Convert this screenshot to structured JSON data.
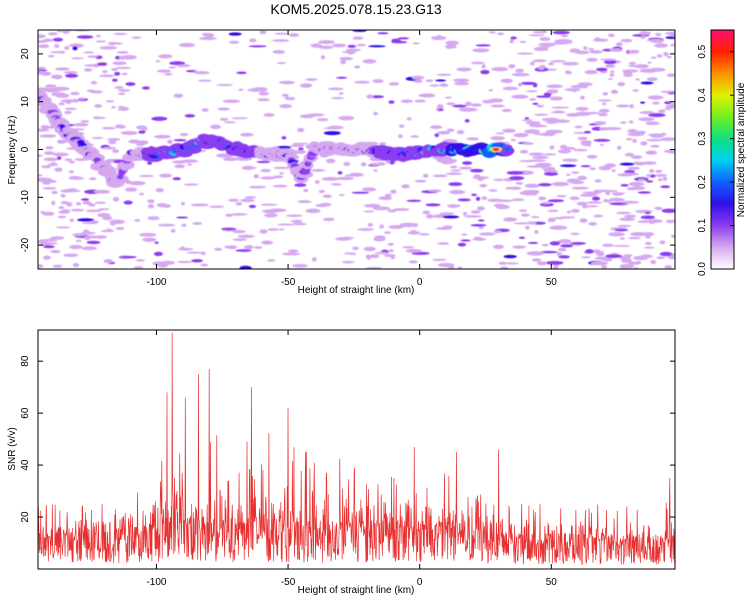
{
  "title": "KOM5.2025.078.15.23.G13",
  "chart_data": [
    {
      "type": "heatmap",
      "xlabel": "Height of straight line (km)",
      "ylabel": "Frequency (Hz)",
      "xlim": [
        -145,
        97
      ],
      "ylim": [
        -25,
        25
      ],
      "xticks": [
        -100,
        -50,
        0,
        50
      ],
      "xtick_labels": [
        "-100",
        "-50",
        "0",
        "50"
      ],
      "yticks": [
        -20,
        -10,
        0,
        10,
        20
      ],
      "ytick_labels": [
        "-20",
        "-10",
        "0",
        "10",
        "20"
      ],
      "colorbar": {
        "label": "Normalized spectral amplitude",
        "range": [
          0,
          0.55
        ],
        "ticks": [
          0,
          0.1,
          0.2,
          0.3,
          0.4,
          0.5
        ],
        "tick_labels": [
          "0.0",
          "0.1",
          "0.2",
          "0.3",
          "0.4",
          "0.5"
        ],
        "colors": [
          "#ffffff",
          "#d5a8f0",
          "#8c3cf0",
          "#3010e8",
          "#1060ff",
          "#00d0f0",
          "#10e080",
          "#70f020",
          "#e0f000",
          "#ff9000",
          "#ff2000",
          "#ff1070"
        ]
      },
      "ridge": [
        {
          "x": -144,
          "y": 11,
          "v": 0.1
        },
        {
          "x": -140,
          "y": 8,
          "v": 0.12
        },
        {
          "x": -135,
          "y": 4,
          "v": 0.15
        },
        {
          "x": -130,
          "y": 2,
          "v": 0.16
        },
        {
          "x": -125,
          "y": -1,
          "v": 0.15
        },
        {
          "x": -120,
          "y": -4,
          "v": 0.12
        },
        {
          "x": -115,
          "y": -7,
          "v": 0.1
        },
        {
          "x": -110,
          "y": -1,
          "v": 0.12
        },
        {
          "x": -100,
          "y": -1,
          "v": 0.2
        },
        {
          "x": -95,
          "y": -0.5,
          "v": 0.25
        },
        {
          "x": -88,
          "y": 0,
          "v": 0.28
        },
        {
          "x": -82,
          "y": 2,
          "v": 0.22
        },
        {
          "x": -75,
          "y": 1,
          "v": 0.2
        },
        {
          "x": -68,
          "y": 0,
          "v": 0.22
        },
        {
          "x": -60,
          "y": -1,
          "v": 0.16
        },
        {
          "x": -50,
          "y": -1,
          "v": 0.14
        },
        {
          "x": -45,
          "y": -6,
          "v": 0.1
        },
        {
          "x": -40,
          "y": 0,
          "v": 0.15
        },
        {
          "x": -30,
          "y": 0,
          "v": 0.16
        },
        {
          "x": -20,
          "y": 0,
          "v": 0.15
        },
        {
          "x": -10,
          "y": -1,
          "v": 0.2
        },
        {
          "x": -5,
          "y": -1,
          "v": 0.2
        },
        {
          "x": 5,
          "y": 0,
          "v": 0.25
        },
        {
          "x": 12,
          "y": 0,
          "v": 0.28
        },
        {
          "x": 18,
          "y": 0,
          "v": 0.3
        },
        {
          "x": 24,
          "y": 0,
          "v": 0.33
        },
        {
          "x": 29,
          "y": 0,
          "v": 0.53
        },
        {
          "x": 34,
          "y": 0,
          "v": 0.15
        }
      ]
    },
    {
      "type": "line",
      "xlabel": "Height of straight line (km)",
      "ylabel": "SNR (v/v)",
      "xlim": [
        -145,
        97
      ],
      "ylim": [
        0,
        92
      ],
      "xticks": [
        -100,
        -50,
        0,
        50
      ],
      "xtick_labels": [
        "-100",
        "-50",
        "0",
        "50"
      ],
      "yticks": [
        20,
        40,
        60,
        80
      ],
      "ytick_labels": [
        "20",
        "40",
        "60",
        "80"
      ],
      "color": "#e83030",
      "envelope": [
        {
          "x": -145,
          "base": 12,
          "amp": 18
        },
        {
          "x": -120,
          "base": 14,
          "amp": 20
        },
        {
          "x": -105,
          "base": 15,
          "amp": 22
        },
        {
          "x": -98,
          "base": 20,
          "amp": 40
        },
        {
          "x": -94,
          "base": 25,
          "amp": 65
        },
        {
          "x": -90,
          "base": 18,
          "amp": 35
        },
        {
          "x": -85,
          "base": 18,
          "amp": 50
        },
        {
          "x": -80,
          "base": 18,
          "amp": 55
        },
        {
          "x": -70,
          "base": 17,
          "amp": 40
        },
        {
          "x": -60,
          "base": 18,
          "amp": 52
        },
        {
          "x": -50,
          "base": 17,
          "amp": 45
        },
        {
          "x": -30,
          "base": 16,
          "amp": 38
        },
        {
          "x": -10,
          "base": 18,
          "amp": 35
        },
        {
          "x": 0,
          "base": 16,
          "amp": 30
        },
        {
          "x": 20,
          "base": 16,
          "amp": 30
        },
        {
          "x": 35,
          "base": 12,
          "amp": 20
        },
        {
          "x": 60,
          "base": 12,
          "amp": 18
        },
        {
          "x": 97,
          "base": 11,
          "amp": 22
        }
      ],
      "peaks": [
        {
          "x": -94,
          "y": 91
        },
        {
          "x": -96,
          "y": 68
        },
        {
          "x": -80,
          "y": 77
        },
        {
          "x": -84,
          "y": 75
        },
        {
          "x": -64,
          "y": 70
        },
        {
          "x": -89,
          "y": 66
        },
        {
          "x": -50,
          "y": 62
        },
        {
          "x": 30,
          "y": 46
        },
        {
          "x": 14,
          "y": 45
        },
        {
          "x": -2,
          "y": 47
        },
        {
          "x": 95,
          "y": 35
        }
      ]
    }
  ]
}
